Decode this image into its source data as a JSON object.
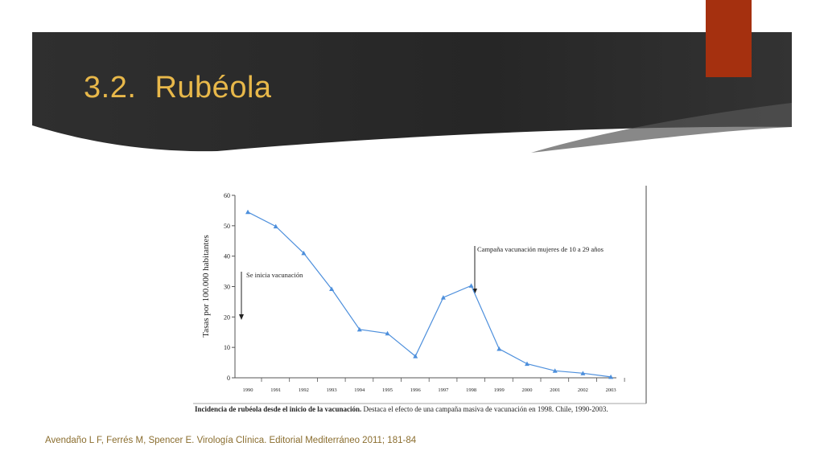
{
  "slide": {
    "title": "3.2.\tRubéola",
    "citation": "Avendaño L F, Ferrés M, Spencer E. Virología Clínica. Editorial Mediterráneo 2011; 181-84",
    "colors": {
      "banner": "#2b2b2b",
      "accent": "#a5300f",
      "title": "#e8b84a",
      "line": "#4d8fdc"
    }
  },
  "chart_data": {
    "type": "line",
    "ylabel": "Tasas por 100.000 habitantes",
    "ylim": [
      0,
      60
    ],
    "yticks": [
      0,
      10,
      20,
      30,
      40,
      50,
      60
    ],
    "categories": [
      "1990",
      "1991",
      "1992",
      "1993",
      "1994",
      "1995",
      "1996",
      "1997",
      "1998",
      "1999",
      "2000",
      "2001",
      "2002",
      "2003"
    ],
    "series": [
      {
        "values": [
          54.5,
          49.8,
          41.0,
          29.2,
          15.9,
          14.6,
          7.1,
          26.4,
          30.3,
          9.5,
          4.6,
          2.3,
          1.5,
          0.3
        ]
      }
    ],
    "annotations": [
      {
        "text": "Se inicia vacunación",
        "at": "1990"
      },
      {
        "text": "Campaña vacunación mujeres de 10 a 29 años",
        "at": "1998"
      }
    ],
    "caption_bold": "Incidencia de rubéola desde el inicio de la vacunación.",
    "caption_rest": " Destaca el efecto de una campaña masiva de vacunación en 1998. Chile, 1990-2003.",
    "grid": false,
    "legend": "none"
  }
}
